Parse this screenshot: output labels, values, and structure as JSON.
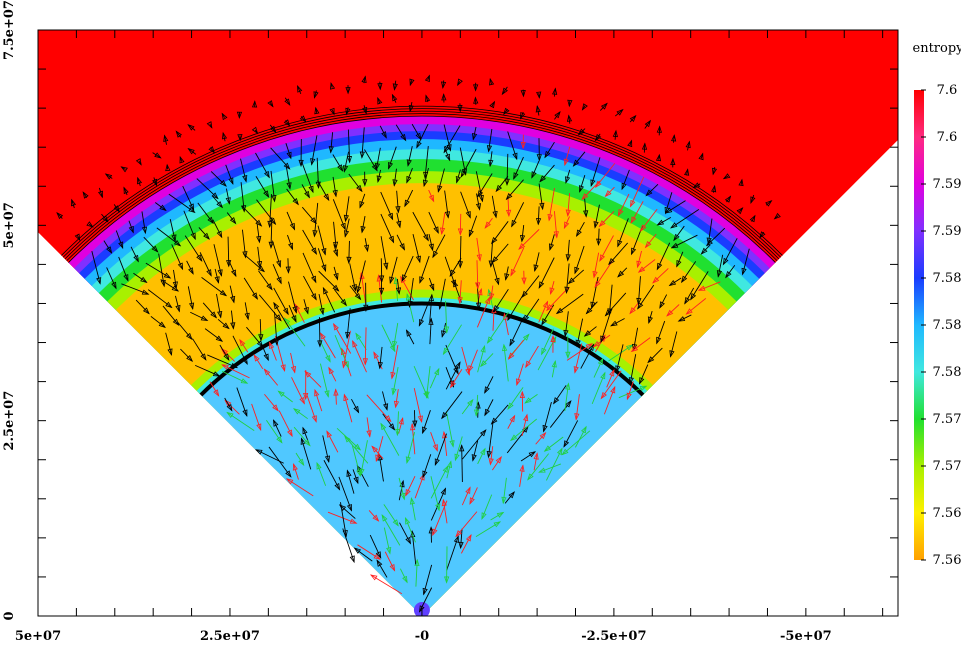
{
  "chart_data": {
    "type": "heatmap",
    "title": "",
    "xlabel": "",
    "ylabel": "",
    "xlim": [
      50000000,
      -62000000
    ],
    "ylim": [
      0,
      75000000
    ],
    "x_ticks": [
      {
        "value": 50000000,
        "label": "5e+07"
      },
      {
        "value": 25000000,
        "label": "2.5e+07"
      },
      {
        "value": 0,
        "label": "-0"
      },
      {
        "value": -25000000,
        "label": "-2.5e+07"
      },
      {
        "value": -50000000,
        "label": "-5e+07"
      }
    ],
    "y_ticks": [
      {
        "value": 0,
        "label": "0"
      },
      {
        "value": 25000000,
        "label": "2.5e+07"
      },
      {
        "value": 50000000,
        "label": "5e+07"
      },
      {
        "value": 75000000,
        "label": "7.5e+07"
      }
    ],
    "colorbar": {
      "title": "entropy",
      "labels": [
        "7.6",
        "7.6",
        "7.59",
        "7.59",
        "7.58",
        "7.58",
        "7.58",
        "7.57",
        "7.57",
        "7.56",
        "7.56"
      ],
      "colors": [
        "#ff0000",
        "#ff2a80",
        "#e000e0",
        "#8030ff",
        "#1a3cff",
        "#1fb8ff",
        "#40e8e0",
        "#20e030",
        "#a8f000",
        "#fff000",
        "#ffa000"
      ]
    },
    "domain": {
      "wedge_half_angle_deg": 45,
      "apex": [
        0,
        0
      ],
      "outer_radius": 65000000,
      "inner_boundary_radius": 40000000
    },
    "region_colors": {
      "background": "#ff0000",
      "shell_band": [
        "#ff0000",
        "#e000e0",
        "#8030ff",
        "#1a3cff",
        "#1fb8ff",
        "#40e8e0",
        "#20e030",
        "#a8f000"
      ],
      "convective_zone": "#ffc000",
      "core": "#50c8ff",
      "core_edge": "#40e8e0",
      "apex_blob": "#6040ff"
    },
    "boundary_line_color": "#000000",
    "vector_colors": [
      "#000000",
      "#ff2020",
      "#20d040",
      "#1fb8ff"
    ]
  }
}
